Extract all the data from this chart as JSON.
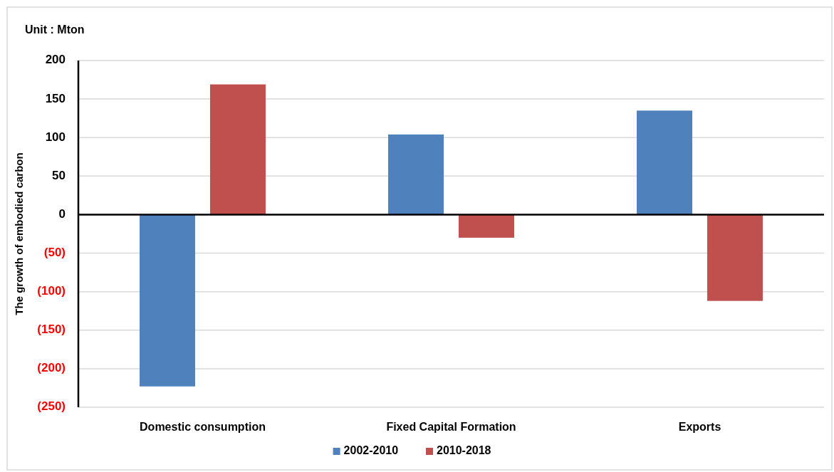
{
  "chart_data": {
    "type": "bar",
    "annotations": [
      "Unit : Mton"
    ],
    "ylabel": "The growth of embodied carbon",
    "categories": [
      "Domestic consumption",
      "Fixed Capital Formation",
      "Exports"
    ],
    "series": [
      {
        "name": "2002-2010",
        "color": "#4f81bd",
        "values": [
          -223,
          104,
          135
        ]
      },
      {
        "name": "2010-2018",
        "color": "#c0504d",
        "values": [
          169,
          -30,
          -112
        ]
      }
    ],
    "ylim": [
      -250,
      200
    ],
    "yticks": [
      {
        "value": -250,
        "label": "(250)"
      },
      {
        "value": -200,
        "label": "(200)"
      },
      {
        "value": -150,
        "label": "(150)"
      },
      {
        "value": -100,
        "label": "(100)"
      },
      {
        "value": -50,
        "label": "(50)"
      },
      0,
      50,
      100,
      150,
      200
    ],
    "grid": "y",
    "legend": "bottom"
  }
}
